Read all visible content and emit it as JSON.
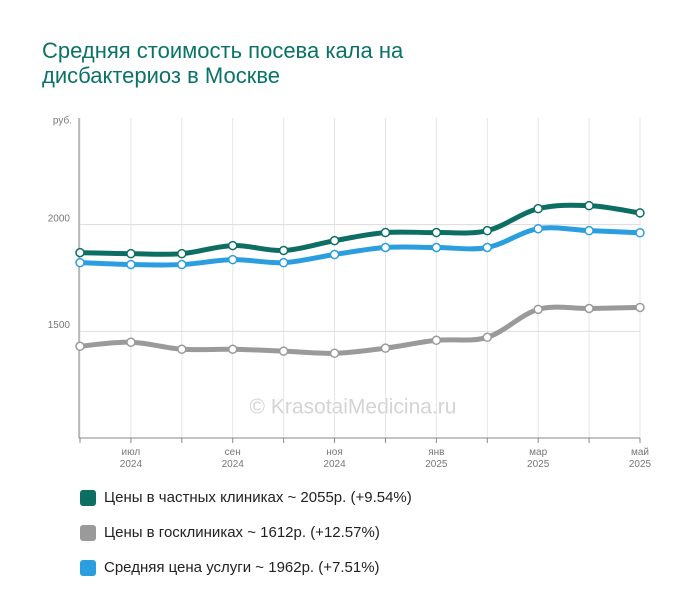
{
  "chart_data": {
    "type": "line",
    "title": [
      "Средняя стоимость посева кала на",
      "дисбактериоз в Москве"
    ],
    "y_label": "руб.",
    "watermark": "© KrasotaiMedicina.ru",
    "categories": [
      null,
      "июл 2024",
      null,
      "сен 2024",
      null,
      "ноя 2024",
      null,
      "янв 2025",
      null,
      "мар 2025",
      null,
      "май 2025"
    ],
    "series": [
      {
        "name": "Цены в частных клиниках ~ 2055р. (+9.54%)",
        "color": "#0d6e63",
        "values": [
          1869,
          1864,
          1864,
          1902,
          1879,
          1925,
          1963,
          1963,
          1972,
          2075,
          2089,
          2055
        ]
      },
      {
        "name": "Цены в госклиниках ~ 1612р. (+12.57%)",
        "color": "#9a9a9a",
        "values": [
          1430,
          1449,
          1416,
          1416,
          1407,
          1397,
          1421,
          1458,
          1472,
          1603,
          1607,
          1612
        ]
      },
      {
        "name": "Средняя цена услуги ~ 1962р. (+7.51%)",
        "color": "#2b9ee0",
        "values": [
          1822,
          1813,
          1813,
          1836,
          1822,
          1860,
          1893,
          1893,
          1893,
          1981,
          1972,
          1962
        ]
      }
    ],
    "ylim": [
      1000,
      2500
    ],
    "yticks": [
      1500,
      2000
    ],
    "grid": true
  }
}
